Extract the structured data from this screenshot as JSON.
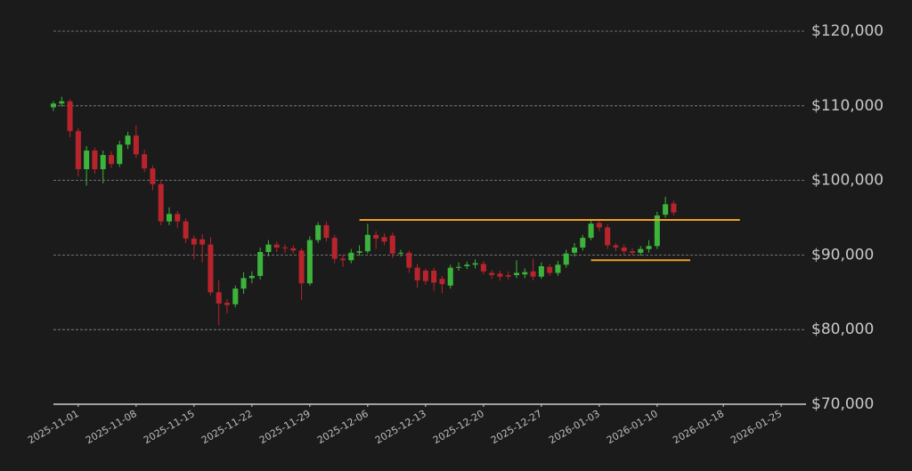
{
  "chart_data": {
    "type": "candlestick",
    "x": [
      "2025-10-29",
      "2025-10-30",
      "2025-10-31",
      "2025-11-01",
      "2025-11-02",
      "2025-11-03",
      "2025-11-04",
      "2025-11-05",
      "2025-11-06",
      "2025-11-07",
      "2025-11-08",
      "2025-11-09",
      "2025-11-10",
      "2025-11-11",
      "2025-11-12",
      "2025-11-13",
      "2025-11-14",
      "2025-11-15",
      "2025-11-16",
      "2025-11-17",
      "2025-11-18",
      "2025-11-19",
      "2025-11-20",
      "2025-11-21",
      "2025-11-22",
      "2025-11-23",
      "2025-11-24",
      "2025-11-25",
      "2025-11-26",
      "2025-11-27",
      "2025-11-28",
      "2025-11-29",
      "2025-11-30",
      "2025-12-01",
      "2025-12-02",
      "2025-12-03",
      "2025-12-04",
      "2025-12-05",
      "2025-12-06",
      "2025-12-07",
      "2025-12-08",
      "2025-12-09",
      "2025-12-10",
      "2025-12-11",
      "2025-12-12",
      "2025-12-13",
      "2025-12-14",
      "2025-12-15",
      "2025-12-16",
      "2025-12-17",
      "2025-12-18",
      "2025-12-19",
      "2025-12-20",
      "2025-12-21",
      "2025-12-22",
      "2025-12-23",
      "2025-12-24",
      "2025-12-25",
      "2025-12-26",
      "2025-12-27",
      "2025-12-28",
      "2025-12-29",
      "2025-12-30",
      "2025-12-31",
      "2026-01-01",
      "2026-01-02",
      "2026-01-03",
      "2026-01-04",
      "2026-01-05",
      "2026-01-06",
      "2026-01-07",
      "2026-01-08",
      "2026-01-09",
      "2026-01-10",
      "2026-01-11",
      "2026-01-12"
    ],
    "open": [
      109800,
      110300,
      110600,
      106600,
      101500,
      104000,
      101500,
      103400,
      102200,
      104800,
      106000,
      103500,
      101600,
      99500,
      94500,
      95500,
      94500,
      92200,
      92100,
      91400,
      85000,
      83600,
      83400,
      85500,
      86900,
      87200,
      90400,
      91400,
      91000,
      90900,
      90600,
      86200,
      92000,
      94000,
      92300,
      89500,
      89300,
      90300,
      90500,
      92700,
      92400,
      92600,
      90200,
      90300,
      88300,
      87900,
      87900,
      86800,
      85900,
      88300,
      88500,
      88700,
      88800,
      87600,
      87500,
      87300,
      87300,
      87400,
      87800,
      87100,
      88400,
      87600,
      88700,
      90300,
      91000,
      92300,
      94300,
      93700,
      91300,
      91000,
      90500,
      90300,
      90800,
      91200,
      95400,
      96900
    ],
    "high": [
      110600,
      111200,
      110900,
      107000,
      104600,
      104400,
      104000,
      103900,
      105300,
      106500,
      107400,
      104100,
      102000,
      99900,
      96400,
      95900,
      94900,
      92600,
      92800,
      92400,
      86600,
      84100,
      85900,
      87700,
      87800,
      91000,
      92000,
      91800,
      91400,
      91300,
      90900,
      92500,
      94400,
      94500,
      92700,
      90000,
      90800,
      91300,
      94200,
      93200,
      92900,
      93000,
      90700,
      90600,
      88800,
      88200,
      88300,
      87200,
      88700,
      89000,
      89100,
      89400,
      89200,
      88000,
      87900,
      87800,
      89300,
      88200,
      89500,
      89000,
      88800,
      89200,
      90700,
      91600,
      92700,
      94700,
      94700,
      94100,
      91600,
      91400,
      90900,
      91200,
      92000,
      95800,
      97800,
      97300
    ],
    "low": [
      109300,
      109900,
      105800,
      100500,
      99300,
      100900,
      99600,
      101700,
      101800,
      104200,
      103000,
      101100,
      98700,
      94000,
      94000,
      93600,
      91600,
      89400,
      89000,
      84600,
      80600,
      82200,
      83000,
      84800,
      86200,
      86700,
      89800,
      90400,
      90300,
      90200,
      84000,
      85900,
      91600,
      91800,
      88900,
      88400,
      88900,
      89900,
      90200,
      90800,
      91300,
      89600,
      89800,
      87600,
      85600,
      86000,
      85200,
      84900,
      85500,
      87900,
      88100,
      88200,
      87400,
      86800,
      86600,
      86700,
      86900,
      86900,
      86600,
      86800,
      87200,
      87200,
      88300,
      89800,
      90600,
      92000,
      93200,
      90800,
      90500,
      90000,
      90000,
      89900,
      90300,
      90800,
      95000,
      95300
    ],
    "close": [
      110300,
      110600,
      106600,
      101500,
      104000,
      101500,
      103400,
      102200,
      104800,
      106000,
      103500,
      101600,
      99500,
      94500,
      95500,
      94500,
      92200,
      91400,
      91400,
      85000,
      83500,
      83300,
      85500,
      86900,
      87200,
      90400,
      91400,
      91000,
      90900,
      90600,
      86200,
      92000,
      94000,
      92300,
      89500,
      89300,
      90300,
      90500,
      92700,
      92200,
      91800,
      90200,
      90300,
      88300,
      86600,
      86500,
      86300,
      86100,
      88300,
      88400,
      88700,
      88900,
      87800,
      87300,
      87100,
      87100,
      87600,
      87700,
      87100,
      88500,
      87600,
      88700,
      90200,
      91000,
      92300,
      94200,
      93700,
      91300,
      91000,
      90500,
      90300,
      90800,
      91200,
      95300,
      96800,
      95700
    ],
    "up_color": "#3cb43c",
    "down_color": "#b8242c",
    "levels": [
      {
        "start": "2025-12-05",
        "end": "2026-01-20",
        "value": 94700
      },
      {
        "start": "2026-01-02",
        "end": "2026-01-14",
        "value": 89300
      }
    ],
    "level_color": "#f0a020",
    "xlim": [
      "2025-10-29",
      "2026-01-28"
    ],
    "xticks": [
      "2025-11-01",
      "2025-11-08",
      "2025-11-15",
      "2025-11-22",
      "2025-11-29",
      "2025-12-06",
      "2025-12-13",
      "2025-12-20",
      "2025-12-27",
      "2026-01-03",
      "2026-01-10",
      "2026-01-18",
      "2026-01-25"
    ],
    "ylim": [
      70000,
      120000
    ],
    "yticks": [
      {
        "value": 70000,
        "label": "$70,000"
      },
      {
        "value": 80000,
        "label": "$80,000"
      },
      {
        "value": 90000,
        "label": "$90,000"
      },
      {
        "value": 100000,
        "label": "$100,000"
      },
      {
        "value": 110000,
        "label": "$110,000"
      },
      {
        "value": 120000,
        "label": "$120,000"
      }
    ],
    "grid": true,
    "y_axis_side": "right"
  }
}
